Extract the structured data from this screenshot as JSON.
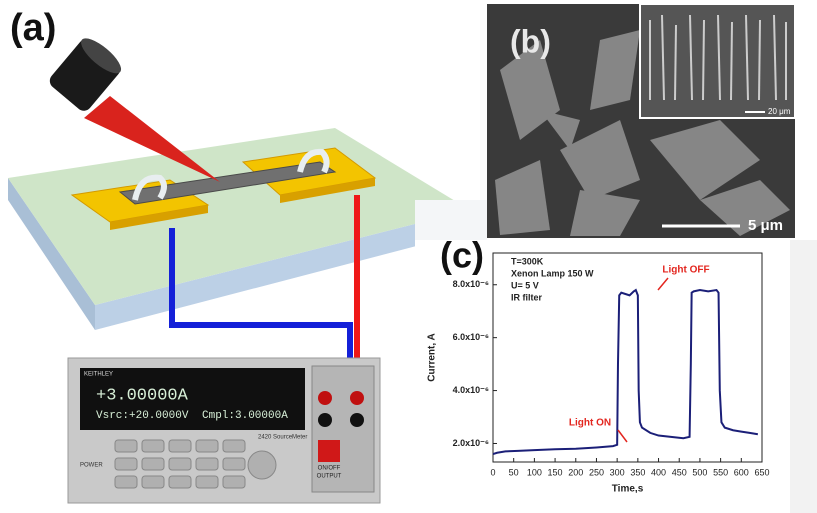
{
  "panels": {
    "a": {
      "label": "(a)",
      "meter": {
        "brand": "KEITHLEY",
        "reading": "+3.00000A",
        "vsrc": "Vsrc:+20.0000V",
        "cmpl": "Cmpl:3.00000A",
        "model": "2420 SourceMeter",
        "onoff": "ON/OFF",
        "output": "OUTPUT",
        "power": "POWER"
      }
    },
    "b": {
      "label": "(b)",
      "scale": "5 μm",
      "inset_scale": "20 μm"
    },
    "c": {
      "label": "(c)"
    }
  },
  "chart_data": {
    "type": "line",
    "xlabel": "Time,s",
    "ylabel": "Current, A",
    "notes": [
      "T=300K",
      "Xenon Lamp 150 W",
      "U= 5 V",
      "IR filter"
    ],
    "annotations": [
      {
        "text": "Light ON",
        "color": "#e3261f"
      },
      {
        "text": "Light OFF",
        "color": "#e3261f"
      }
    ],
    "x": [
      0,
      10,
      30,
      60,
      100,
      150,
      200,
      250,
      290,
      300,
      302,
      305,
      310,
      320,
      330,
      340,
      345,
      350,
      352,
      355,
      360,
      380,
      400,
      430,
      460,
      475,
      478,
      480,
      485,
      500,
      520,
      540,
      545,
      548,
      552,
      560,
      580,
      600,
      620,
      640
    ],
    "series": [
      {
        "color": "#1b1f78",
        "values": [
          1.6e-06,
          1.65e-06,
          1.7e-06,
          1.72e-06,
          1.75e-06,
          1.78e-06,
          1.8e-06,
          1.85e-06,
          1.9e-06,
          1.95e-06,
          5e-06,
          7.6e-06,
          7.7e-06,
          7.65e-06,
          7.6e-06,
          7.75e-06,
          7.8e-06,
          7.6e-06,
          4e-06,
          2.8e-06,
          2.6e-06,
          2.4e-06,
          2.3e-06,
          2.25e-06,
          2.2e-06,
          2.25e-06,
          5e-06,
          7.7e-06,
          7.75e-06,
          7.8e-06,
          7.75e-06,
          7.8e-06,
          7.7e-06,
          4e-06,
          2.8e-06,
          2.6e-06,
          2.5e-06,
          2.45e-06,
          2.4e-06,
          2.35e-06
        ]
      }
    ],
    "xlim": [
      0,
      650
    ],
    "xticks": [
      0,
      50,
      100,
      150,
      200,
      250,
      300,
      350,
      400,
      450,
      500,
      550,
      600,
      650
    ],
    "ylim": [
      1.3e-06,
      9.2e-06
    ],
    "yticks": [
      {
        "value": 2e-06,
        "label": "2.0x10⁻⁶"
      },
      {
        "value": 4e-06,
        "label": "4.0x10⁻⁶"
      },
      {
        "value": 6e-06,
        "label": "6.0x10⁻⁶"
      },
      {
        "value": 8e-06,
        "label": "8.0x10⁻⁶"
      }
    ]
  }
}
